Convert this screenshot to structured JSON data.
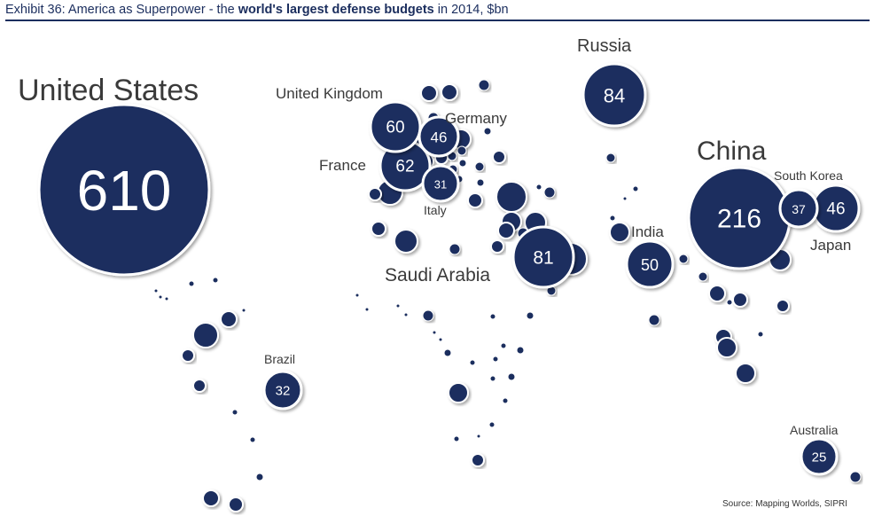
{
  "header": {
    "exhibit": "Exhibit 36: America as Superpower",
    "dash": " - the ",
    "highlight": "world's largest defense budgets",
    "suffix": " in 2014, $bn"
  },
  "source": "Source: Mapping Worlds, SIPRI",
  "colors": {
    "bubble": "#1b2e5e",
    "header": "#1b2e5e",
    "label": "#3a3a3a"
  },
  "chart_data": {
    "type": "bubble-map",
    "title": "Exhibit 36: America as Superpower - the world's largest defense budgets in 2014, $bn",
    "unit": "$bn",
    "series": [
      {
        "name": "United States",
        "value": 610,
        "label": "United States"
      },
      {
        "name": "China",
        "value": 216,
        "label": "China"
      },
      {
        "name": "Russia",
        "value": 84,
        "label": "Russia"
      },
      {
        "name": "Saudi Arabia",
        "value": 81,
        "label": "Saudi Arabia"
      },
      {
        "name": "France",
        "value": 62,
        "label": "France"
      },
      {
        "name": "United Kingdom",
        "value": 60,
        "label": "United Kingdom"
      },
      {
        "name": "India",
        "value": 50,
        "label": "India"
      },
      {
        "name": "Germany",
        "value": 46,
        "label": "Germany"
      },
      {
        "name": "Japan",
        "value": 46,
        "label": "Japan"
      },
      {
        "name": "South Korea",
        "value": 37,
        "label": "South Korea"
      },
      {
        "name": "Brazil",
        "value": 32,
        "label": "Brazil"
      },
      {
        "name": "Italy",
        "value": 31,
        "label": "Italy"
      },
      {
        "name": "Australia",
        "value": 25,
        "label": "Australia"
      }
    ]
  }
}
